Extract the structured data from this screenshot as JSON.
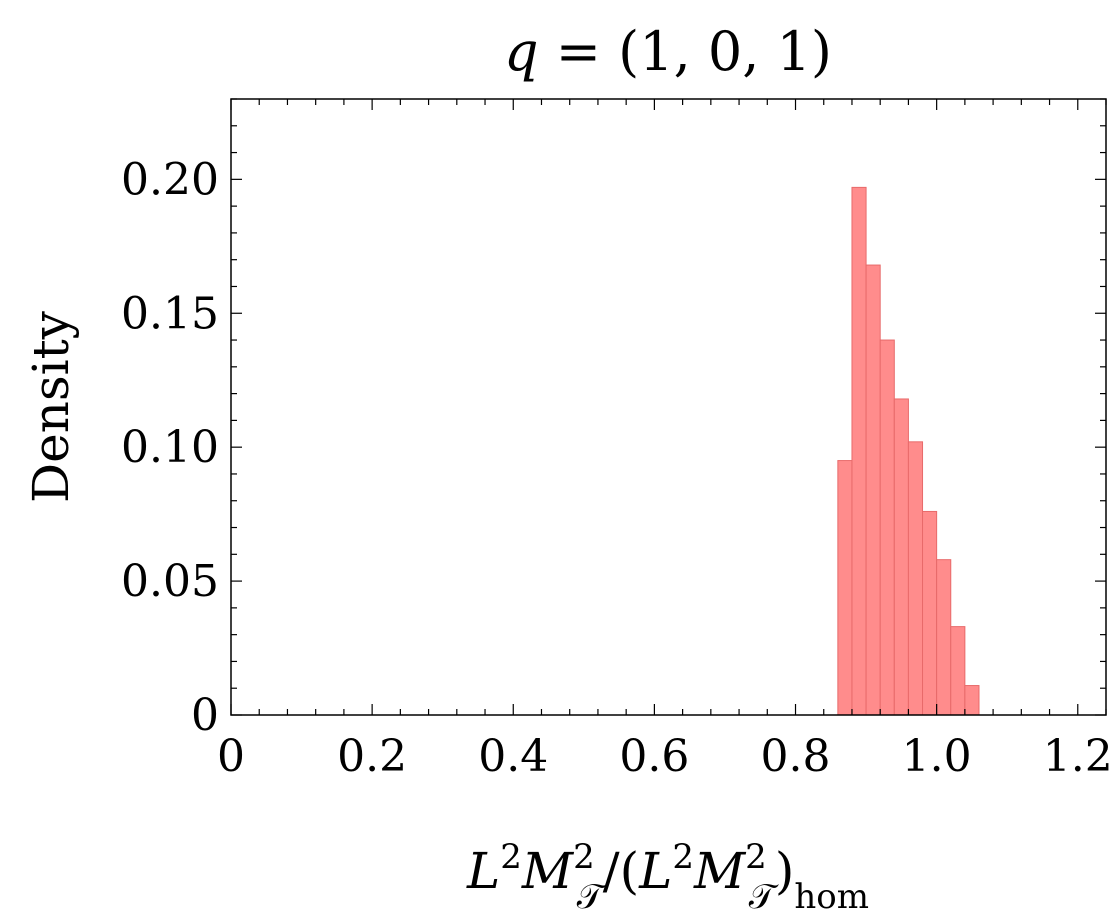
{
  "chart_data": {
    "type": "bar",
    "title": {
      "var": "q",
      "rest": " = (1, 0, 1)"
    },
    "ylabel": "Density",
    "xlabel": {
      "L": "L",
      "M": "M",
      "sup": "2",
      "sub": "𝒯",
      "slash": "/(",
      "close": ")",
      "hom": "hom"
    },
    "xlim": [
      0,
      1.24
    ],
    "ylim": [
      0,
      0.23
    ],
    "xticks": [
      "0",
      "0.2",
      "0.4",
      "0.6",
      "0.8",
      "1.0",
      "1.2"
    ],
    "yticks": [
      "0",
      "0.05",
      "0.10",
      "0.15",
      "0.20"
    ],
    "bin_width": 0.02,
    "bins": [
      {
        "x0": 0.86,
        "value": 0.095
      },
      {
        "x0": 0.88,
        "value": 0.197
      },
      {
        "x0": 0.9,
        "value": 0.168
      },
      {
        "x0": 0.92,
        "value": 0.14
      },
      {
        "x0": 0.94,
        "value": 0.118
      },
      {
        "x0": 0.96,
        "value": 0.102
      },
      {
        "x0": 0.98,
        "value": 0.076
      },
      {
        "x0": 1.0,
        "value": 0.058
      },
      {
        "x0": 1.02,
        "value": 0.033
      },
      {
        "x0": 1.04,
        "value": 0.011
      }
    ],
    "colors": {
      "bar_fill": "#ff8c8c",
      "bar_edge": "#e86a6a",
      "frame": "#000000"
    }
  }
}
